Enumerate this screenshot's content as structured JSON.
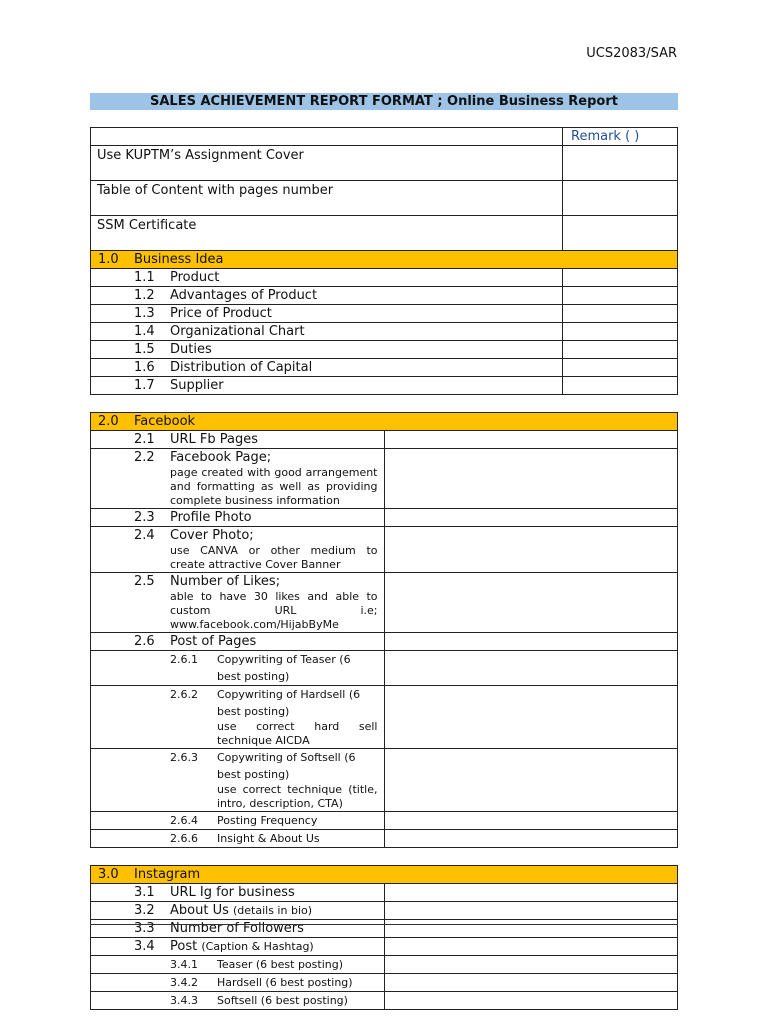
{
  "header": {
    "code": "UCS2083/SAR",
    "title": "SALES ACHIEVEMENT REPORT FORMAT ; Online Business Report"
  },
  "tables": [
    {
      "remark": "Remark (      )",
      "rows": [
        {
          "text": "Use KUPTM’s Assignment Cover"
        },
        {
          "text": "Table of Content with pages number"
        },
        {
          "text": "SSM Certificate"
        },
        {
          "num": "1.0",
          "text": "Business Idea"
        },
        {
          "num": "1.1",
          "text": "Product"
        },
        {
          "num": "1.2",
          "text": "Advantages of Product"
        },
        {
          "num": "1.3",
          "text": "Price of Product"
        },
        {
          "num": "1.4",
          "text": "Organizational Chart"
        },
        {
          "num": "1.5",
          "text": "Duties"
        },
        {
          "num": "1.6",
          "text": "Distribution of Capital"
        },
        {
          "num": "1.7",
          "text": "Supplier"
        }
      ]
    },
    {
      "rows": [
        {
          "num": "2.0",
          "text": "Facebook"
        },
        {
          "num": "2.1",
          "text": "URL Fb Pages"
        },
        {
          "num": "2.2",
          "text": "Facebook Page;",
          "note": "page created with good arrangement and formatting as well as providing complete business information"
        },
        {
          "num": "2.3",
          "text": "Profile Photo"
        },
        {
          "num": "2.4",
          "text": "Cover Photo;",
          "note": "use CANVA or other medium to create attractive Cover Banner"
        },
        {
          "num": "2.5",
          "text": "Number of Likes;",
          "note": "able to have 30 likes and able to custom URL i.e; www.facebook.com/HijabByMe"
        },
        {
          "num": "2.6",
          "text": "Post of Pages"
        },
        {
          "num": "2.6.1",
          "text": "Copywriting of Teaser (6 best posting)"
        },
        {
          "num": "2.6.2",
          "text": "Copywriting of Hardsell (6 best posting)",
          "note": "use correct hard sell technique AICDA"
        },
        {
          "num": "2.6.3",
          "text": "Copywriting of Softsell (6 best posting)",
          "note": "use correct technique (title, intro, description, CTA)"
        },
        {
          "num": "2.6.4",
          "text": "Posting Frequency"
        },
        {
          "num": "2.6.6",
          "text": "Insight & About Us"
        }
      ]
    },
    {
      "rows": [
        {
          "num": "3.0",
          "text": "Instagram"
        },
        {
          "num": "3.1",
          "text": "URL Ig for business"
        },
        {
          "num": "3.2",
          "text": "About Us",
          "small": "(details in bio)"
        },
        {
          "num": "3.3",
          "text": "Number of Followers"
        },
        {
          "num": "3.4",
          "text": "Post",
          "small": "(Caption & Hashtag)"
        },
        {
          "num": "3.4.1",
          "text": "Teaser (6 best posting)"
        },
        {
          "num": "3.4.2",
          "text": "Hardsell (6 best posting)"
        },
        {
          "num": "3.4.3",
          "text": "Softsell (6 best posting)"
        }
      ]
    }
  ]
}
